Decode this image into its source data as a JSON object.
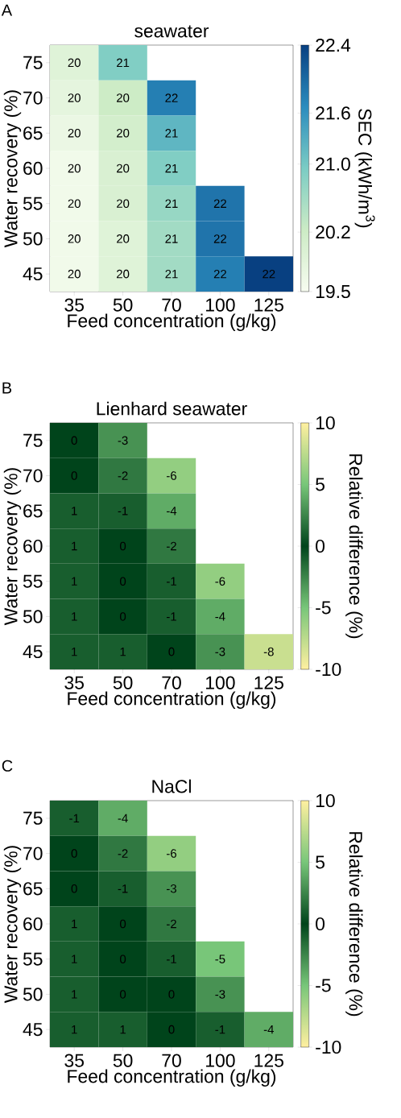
{
  "chart_data": [
    {
      "type": "heatmap",
      "title": "seawater",
      "xlabel": "Feed concentration (g/kg)",
      "ylabel": "Water recovery (%)",
      "clabel": "SEC (kWh/m$^{3}$)",
      "annotations": [
        "A"
      ],
      "categories": [
        "35",
        "50",
        "70",
        "100",
        "125"
      ],
      "y_categories": [
        "75",
        "70",
        "65",
        "60",
        "55",
        "50",
        "45"
      ],
      "cells": [
        [
          19.9,
          20.9,
          null,
          null,
          null
        ],
        [
          19.8,
          20.2,
          21.8,
          null,
          null
        ],
        [
          19.7,
          20.1,
          21.2,
          null,
          null
        ],
        [
          19.6,
          20.0,
          20.9,
          null,
          null
        ],
        [
          19.6,
          20.0,
          20.7,
          21.9,
          null
        ],
        [
          19.6,
          19.9,
          20.6,
          21.9,
          null
        ],
        [
          19.6,
          19.9,
          20.6,
          21.8,
          22.4
        ]
      ],
      "cell_labels": [
        [
          "20",
          "21",
          null,
          null,
          null
        ],
        [
          "20",
          "20",
          "22",
          null,
          null
        ],
        [
          "20",
          "20",
          "21",
          null,
          null
        ],
        [
          "20",
          "20",
          "21",
          null,
          null
        ],
        [
          "20",
          "20",
          "21",
          "22",
          null
        ],
        [
          "20",
          "20",
          "21",
          "22",
          null
        ],
        [
          "20",
          "20",
          "21",
          "22",
          "22"
        ]
      ],
      "clim": [
        19.5,
        22.4
      ],
      "cticks": [
        19.5,
        20.2,
        {
          "value": 21,
          "label": "21.0"
        },
        21.6,
        22.4
      ]
    },
    {
      "type": "heatmap",
      "title": "Lienhard seawater",
      "xlabel": "Feed concentration (g/kg)",
      "ylabel": "Water recovery (%)",
      "clabel": "Relative difference (%)",
      "annotations": [
        "B"
      ],
      "categories": [
        "35",
        "50",
        "70",
        "100",
        "125"
      ],
      "y_categories": [
        "75",
        "70",
        "65",
        "60",
        "55",
        "50",
        "45"
      ],
      "cells": [
        [
          0,
          -3,
          null,
          null,
          null
        ],
        [
          0,
          -2,
          -6,
          null,
          null
        ],
        [
          1,
          -1,
          -4,
          null,
          null
        ],
        [
          1,
          0,
          -2,
          null,
          null
        ],
        [
          1,
          0,
          -1,
          -6,
          null
        ],
        [
          1,
          0,
          -1,
          -4,
          null
        ],
        [
          1,
          1,
          0,
          -3,
          -8
        ]
      ],
      "data_labels": true,
      "clim": [
        -10,
        10
      ],
      "cticks": [
        -10,
        -5,
        0,
        5,
        10
      ]
    },
    {
      "type": "heatmap",
      "title": "NaCl",
      "xlabel": "Feed concentration (g/kg)",
      "ylabel": "Water recovery (%)",
      "clabel": "Relative difference (%)",
      "annotations": [
        "C"
      ],
      "categories": [
        "35",
        "50",
        "70",
        "100",
        "125"
      ],
      "y_categories": [
        "75",
        "70",
        "65",
        "60",
        "55",
        "50",
        "45"
      ],
      "cells": [
        [
          -1,
          -4,
          null,
          null,
          null
        ],
        [
          0,
          -2,
          -6,
          null,
          null
        ],
        [
          0,
          -1,
          -3,
          null,
          null
        ],
        [
          1,
          0,
          -2,
          null,
          null
        ],
        [
          1,
          0,
          -1,
          -5,
          null
        ],
        [
          1,
          0,
          0,
          -3,
          null
        ],
        [
          1,
          1,
          0,
          -1,
          -4
        ]
      ],
      "data_labels": true,
      "clim": [
        -10,
        10
      ],
      "cticks": [
        -10,
        -5,
        0,
        5,
        10
      ]
    }
  ]
}
